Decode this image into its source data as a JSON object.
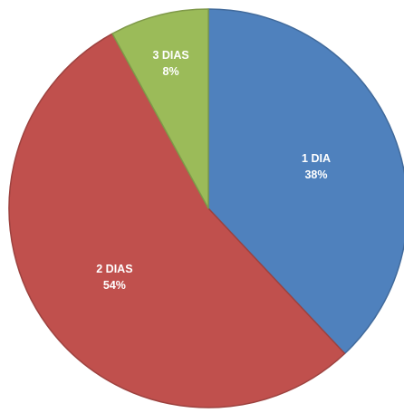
{
  "chart_data": {
    "type": "pie",
    "slices": [
      {
        "label": "1 DIA",
        "percent_label": "38%",
        "value": 38,
        "color": "#4F81BD"
      },
      {
        "label": "2 DIAS",
        "percent_label": "54%",
        "value": 54,
        "color": "#C0504D"
      },
      {
        "label": "3 DIAS",
        "percent_label": "8%",
        "value": 8,
        "color": "#9BBB59"
      }
    ],
    "start_angle": "12 o'clock",
    "direction": "clockwise",
    "legend": "none",
    "data_labels": "inside slices"
  }
}
